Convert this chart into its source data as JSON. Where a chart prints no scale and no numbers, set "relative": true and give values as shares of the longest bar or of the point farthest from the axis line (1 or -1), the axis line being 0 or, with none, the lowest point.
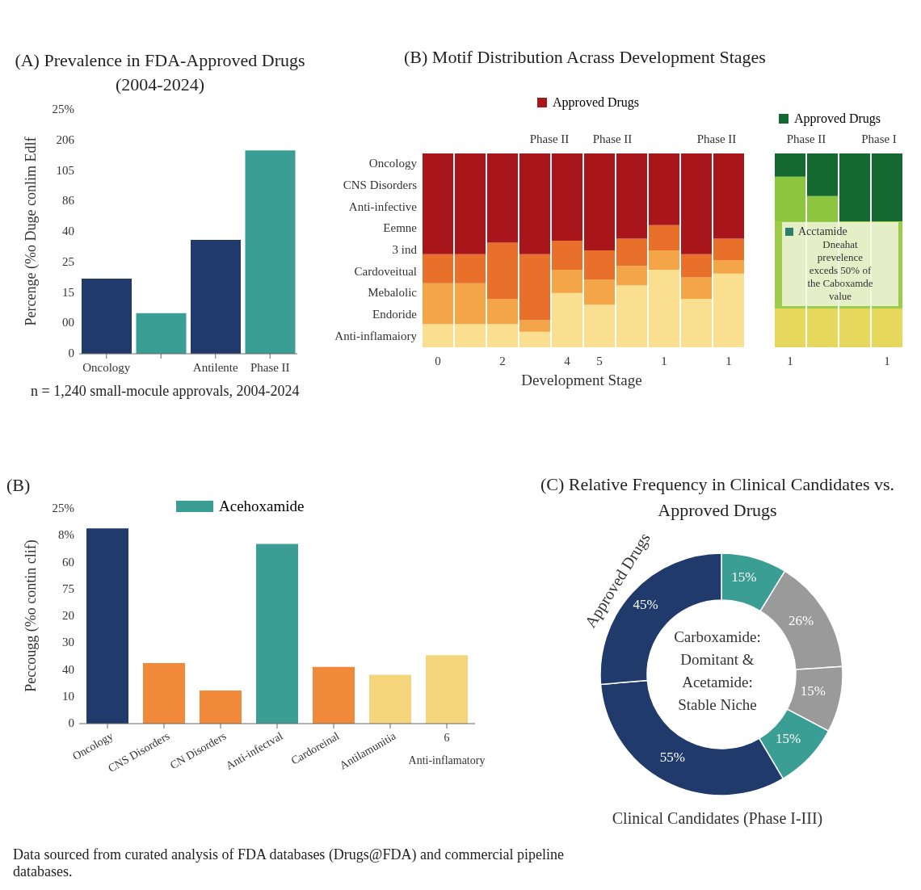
{
  "chart_data": [
    {
      "type": "bar",
      "relative": true,
      "title": "(A)   Prevalence in FDA-Approved Drugs (2004-2024)",
      "ylabel": "Percenge (%o Duge conlim Edlf",
      "categories": [
        "Oncology",
        null,
        "Antilente",
        "Phase II"
      ],
      "values": [
        0.37,
        0.2,
        0.56,
        1
      ],
      "colors": [
        "#1f3a6b",
        "#3a9e94",
        "#1f3a6b",
        "#3a9e94"
      ],
      "annotations": [
        "n = 1,240 small-mocule approvals, 2004-2024",
        "0",
        "00",
        "15",
        "25",
        "40",
        "86",
        "105",
        "206",
        "25%"
      ]
    },
    {
      "type": "bar",
      "relative": true,
      "stacked": true,
      "legend": "top",
      "title": "(B)   Motif Distribution Acrass Development Stages",
      "xlabel": "Development Stage",
      "categories": [
        "0",
        null,
        "2",
        null,
        "4",
        "5",
        null,
        "1",
        null,
        "1"
      ],
      "series": [
        {
          "color": "#f9df8f",
          "values": [
            0.12,
            0.12,
            0.12,
            0.08,
            0.28,
            0.22,
            0.32,
            0.4,
            0.25,
            0.38
          ]
        },
        {
          "color": "#f4a547",
          "values": [
            0.21,
            0.21,
            0.13,
            0.06,
            0.12,
            0.13,
            0.1,
            0.1,
            0.11,
            0.07
          ]
        },
        {
          "color": "#e8702a",
          "values": [
            0.15,
            0.15,
            0.29,
            0.34,
            0.15,
            0.15,
            0.14,
            0.13,
            0.12,
            0.11
          ]
        },
        {
          "name": "Approved Drugs",
          "color": "#a8151b",
          "values": [
            0.52,
            0.52,
            0.46,
            0.52,
            0.45,
            0.5,
            0.44,
            0.37,
            0.52,
            0.44
          ]
        }
      ],
      "annotations": [
        "Oncology",
        "CNS Disorders",
        "Anti-infective",
        "Eemne",
        "3 ind",
        "Cardoveitual",
        "Mebalolic",
        "Endoride",
        "Anti-inflamaiory",
        "Phase II",
        "Phase II",
        "Phase II"
      ]
    },
    {
      "type": "bar",
      "relative": true,
      "stacked": true,
      "legend": "top",
      "categories": [
        "1",
        null,
        null,
        "1"
      ],
      "series": [
        {
          "color": "#e6d85c",
          "values": [
            0.2,
            0.2,
            0.2,
            0.2
          ]
        },
        {
          "color": "#9ccc4a",
          "values": [
            0.45,
            0.45,
            0.45,
            0.45
          ]
        },
        {
          "color": "#8cc63f",
          "values": [
            0.23,
            0.13,
            0,
            0
          ]
        },
        {
          "name": "Approved Drugs",
          "color": "#13692f",
          "values": [
            0.12,
            0.22,
            0.35,
            0.35
          ]
        }
      ],
      "annotations": [
        "Phase II",
        "Phase I",
        "Acctamide",
        "Dneahat prevelence exceds 50% of the Caboxamde value"
      ]
    },
    {
      "type": "bar",
      "relative": true,
      "stacked": true,
      "legend": "top",
      "title": "(B)",
      "ylabel": "Peccougg (%o contin clif)",
      "categories": [
        "Oncology",
        "CNS Disorders",
        "CN Disorders",
        "Anti-infectval",
        "Cardoreinal",
        "Antilamunitia",
        "6\nAnti-inflamatory"
      ],
      "series": [
        {
          "values": [
            1,
            0.31,
            0.17,
            null,
            0.29,
            0.25,
            0.35
          ],
          "colors": [
            "#1f3a6b",
            "#f08a3a",
            "#f08a3a",
            null,
            "#f08a3a",
            "#f5d57c",
            "#f5d57c"
          ]
        },
        {
          "name": "Acehoxamide",
          "color": "#3a9e94",
          "values": [
            null,
            null,
            null,
            0.92,
            null,
            null,
            null
          ]
        }
      ],
      "annotations": [
        "Data sourced from curated analysis of FDA databases (Drugs@FDA) and commercial pipeline databases.",
        "0",
        "10",
        "40",
        "30",
        "20",
        "75",
        "60",
        "8%",
        "25%"
      ]
    },
    {
      "type": "donut",
      "title": "(C)   Relative Frequency in Clinical Candidates vs. Approved Drugs",
      "categories": [
        null,
        null,
        null,
        null,
        null,
        null
      ],
      "values": [
        15,
        26,
        15,
        15,
        55,
        45
      ],
      "colors": [
        "#3a9e94",
        "#9a9a9a",
        "#9a9a9a",
        "#3a9e94",
        "#1f3a6b",
        "#1f3a6b"
      ],
      "value_labels": [
        "15%",
        "26%",
        "15%",
        "15%",
        "55%",
        "45%"
      ],
      "annotations": [
        "Carboxamide: Domitant & Acetamide: Stable Niche",
        "Approved Drugs",
        "Clinical Candidates (Phase I-III)"
      ]
    }
  ]
}
